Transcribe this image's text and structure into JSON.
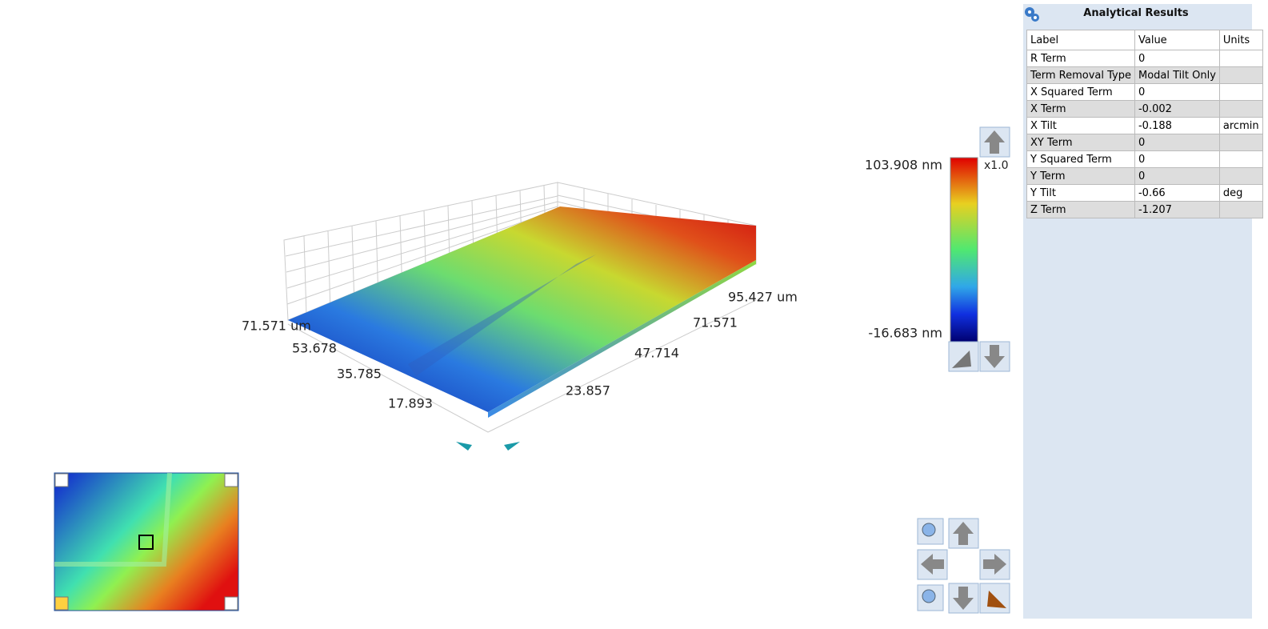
{
  "view3d": {
    "left_axis_labels": [
      "71.571 um",
      "53.678",
      "35.785",
      "17.893"
    ],
    "right_axis_labels": [
      "23.857",
      "47.714",
      "71.571",
      "95.427 um"
    ]
  },
  "colorbar": {
    "max_label": "103.908 nm",
    "min_label": "-16.683 nm",
    "scale_label": "x1.0"
  },
  "results": {
    "title": "Analytical Results",
    "columns": [
      "Label",
      "Value",
      "Units"
    ],
    "rows": [
      [
        "R Term",
        "0"
      ],
      [
        "Term Removal Type",
        "Modal Tilt Only"
      ],
      [
        "X Squared Term",
        "0"
      ],
      [
        "X Term",
        "-0.002"
      ],
      [
        "X Tilt",
        "-0.188",
        "arcmin"
      ],
      [
        "XY Term",
        "0"
      ],
      [
        "Y Squared Term",
        "0"
      ],
      [
        "Y Term",
        "0"
      ],
      [
        "Y Tilt",
        "-0.66",
        "deg"
      ],
      [
        "Z Term",
        "-1.207"
      ]
    ]
  }
}
